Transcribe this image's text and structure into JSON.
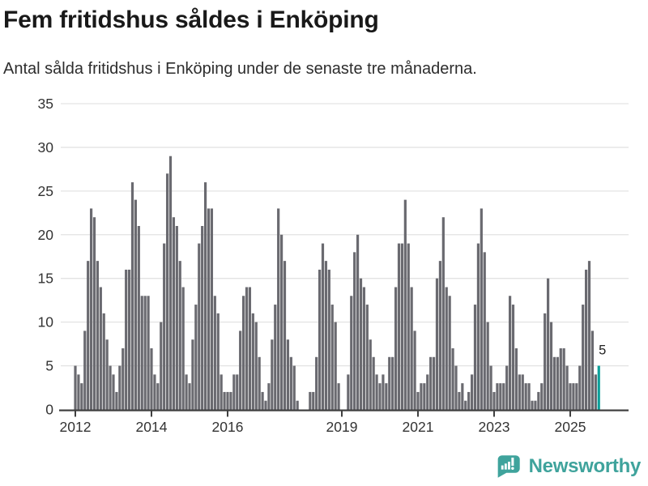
{
  "header": {
    "title": "Fem fritidshus såldes i Enköping",
    "subtitle": "Antal sålda fritidshus i Enköping under de senaste tre månaderna."
  },
  "chart_data": {
    "type": "bar",
    "title": "Fem fritidshus såldes i Enköping",
    "subtitle": "Antal sålda fritidshus i Enköping under de senaste tre månaderna.",
    "x_start": "2012-01",
    "x_end": "2025-10",
    "values": [
      5,
      4,
      3,
      9,
      17,
      23,
      22,
      17,
      14,
      11,
      8,
      5,
      4,
      2,
      5,
      7,
      16,
      16,
      26,
      24,
      21,
      13,
      13,
      13,
      7,
      4,
      3,
      10,
      19,
      27,
      29,
      22,
      21,
      17,
      14,
      4,
      3,
      8,
      12,
      19,
      21,
      26,
      23,
      23,
      13,
      11,
      4,
      2,
      2,
      2,
      4,
      4,
      9,
      13,
      14,
      14,
      11,
      10,
      6,
      2,
      1,
      3,
      8,
      12,
      23,
      20,
      17,
      8,
      6,
      5,
      1,
      0,
      0,
      0,
      2,
      2,
      6,
      16,
      19,
      17,
      16,
      12,
      10,
      3,
      0,
      0,
      4,
      13,
      18,
      20,
      15,
      14,
      12,
      8,
      6,
      4,
      3,
      4,
      3,
      6,
      6,
      14,
      19,
      19,
      24,
      19,
      14,
      9,
      2,
      3,
      3,
      4,
      6,
      6,
      15,
      17,
      22,
      14,
      13,
      7,
      5,
      2,
      3,
      1,
      2,
      4,
      12,
      19,
      23,
      18,
      10,
      5,
      2,
      3,
      3,
      3,
      5,
      13,
      12,
      7,
      4,
      4,
      3,
      3,
      1,
      1,
      2,
      3,
      11,
      15,
      10,
      6,
      6,
      7,
      7,
      5,
      3,
      3,
      3,
      5,
      12,
      16,
      17,
      9,
      4,
      5
    ],
    "ylim": [
      0,
      35
    ],
    "y_ticks": [
      0,
      5,
      10,
      15,
      20,
      25,
      30,
      35
    ],
    "x_ticks": [
      {
        "label": "2012",
        "month_index": 0
      },
      {
        "label": "2014",
        "month_index": 24
      },
      {
        "label": "2016",
        "month_index": 48
      },
      {
        "label": "2019",
        "month_index": 84
      },
      {
        "label": "2021",
        "month_index": 108
      },
      {
        "label": "2023",
        "month_index": 132
      },
      {
        "label": "2025",
        "month_index": 156
      }
    ],
    "grid": true,
    "legend": false,
    "bar_color": "#6a6a70",
    "highlight_color": "#0ca09a",
    "highlight_index": 165,
    "annotation": {
      "text": "5",
      "month_index": 165
    },
    "axis_color": "#3f3f3f",
    "grid_color": "#e3e3e3",
    "tick_label_color": "#333333"
  },
  "footer": {
    "brand": "Newsworthy"
  }
}
